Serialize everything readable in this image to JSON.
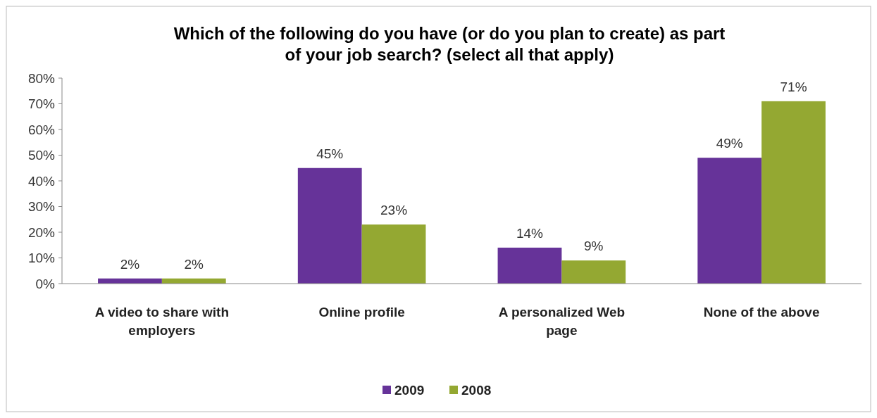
{
  "chart_data": {
    "type": "bar",
    "title": "Which of the following do you have (or do you plan to create) as part\nof your job search? (select all that apply)",
    "categories": [
      "A video to share with employers",
      "Online profile",
      "A personalized Web page",
      "None of the above"
    ],
    "series": [
      {
        "name": "2009",
        "color": "#663399",
        "values": [
          2,
          45,
          14,
          49
        ],
        "value_labels": [
          "2%",
          "45%",
          "14%",
          "49%"
        ]
      },
      {
        "name": "2008",
        "color": "#94a832",
        "values": [
          2,
          23,
          9,
          71
        ],
        "value_labels": [
          "2%",
          "23%",
          "9%",
          "71%"
        ]
      }
    ],
    "ylim": [
      0,
      80
    ],
    "yticks": [
      {
        "value": 0,
        "label": "0%"
      },
      {
        "value": 10,
        "label": "10%"
      },
      {
        "value": 20,
        "label": "20%"
      },
      {
        "value": 30,
        "label": "30%"
      },
      {
        "value": 40,
        "label": "40%"
      },
      {
        "value": 50,
        "label": "50%"
      },
      {
        "value": 60,
        "label": "60%"
      },
      {
        "value": 70,
        "label": "70%"
      },
      {
        "value": 80,
        "label": "80%"
      }
    ],
    "grid": false,
    "legend": "bottom"
  }
}
